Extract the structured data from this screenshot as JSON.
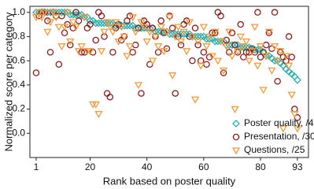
{
  "chart_data": {
    "type": "scatter",
    "xlabel": "Rank based on poster quality",
    "ylabel": "Normalized score per category",
    "x": [
      1,
      2,
      3,
      4,
      5,
      6,
      7,
      8,
      9,
      10,
      11,
      12,
      13,
      14,
      15,
      16,
      17,
      18,
      19,
      20,
      21,
      22,
      23,
      24,
      25,
      26,
      27,
      28,
      29,
      30,
      31,
      32,
      33,
      34,
      35,
      36,
      37,
      38,
      39,
      40,
      41,
      42,
      43,
      44,
      45,
      46,
      47,
      48,
      49,
      50,
      51,
      52,
      53,
      54,
      55,
      56,
      57,
      58,
      59,
      60,
      61,
      62,
      63,
      64,
      65,
      66,
      67,
      68,
      69,
      70,
      71,
      72,
      73,
      74,
      75,
      76,
      77,
      78,
      79,
      80,
      81,
      82,
      83,
      84,
      85,
      86,
      87,
      88,
      89,
      90,
      91,
      92,
      93
    ],
    "xlim": [
      -1.2,
      96.9
    ],
    "xticks": [
      1,
      20,
      40,
      60,
      80,
      93
    ],
    "ylim": [
      -0.2,
      1.05
    ],
    "yticks": [
      {
        "value": 0,
        "label": "0.0"
      },
      {
        "value": 0.2,
        "label": "0.2"
      },
      {
        "value": 0.4,
        "label": "0.4"
      },
      {
        "value": 0.6,
        "label": "0.6"
      },
      {
        "value": 0.8,
        "label": "0.8"
      },
      {
        "value": 1,
        "label": "1.0"
      }
    ],
    "legend": "lower right",
    "series": [
      {
        "name": "Poster quality, /45",
        "color": "#2bafb0",
        "marker": "diamond",
        "values": [
          1,
          1,
          1,
          1,
          1,
          1,
          1,
          1,
          1,
          1,
          1,
          1,
          0.98,
          0.98,
          0.98,
          0.98,
          0.98,
          0.96,
          0.96,
          0.93,
          0.93,
          0.91,
          0.91,
          0.91,
          0.91,
          0.91,
          0.91,
          0.91,
          0.89,
          0.89,
          0.89,
          0.89,
          0.89,
          0.89,
          0.89,
          0.87,
          0.87,
          0.87,
          0.87,
          0.87,
          0.87,
          0.87,
          0.84,
          0.84,
          0.84,
          0.84,
          0.84,
          0.82,
          0.82,
          0.82,
          0.82,
          0.82,
          0.82,
          0.82,
          0.82,
          0.8,
          0.8,
          0.8,
          0.8,
          0.8,
          0.78,
          0.78,
          0.78,
          0.76,
          0.76,
          0.76,
          0.76,
          0.73,
          0.73,
          0.73,
          0.73,
          0.73,
          0.71,
          0.71,
          0.71,
          0.71,
          0.69,
          0.69,
          0.69,
          0.69,
          0.67,
          0.64,
          0.64,
          0.62,
          0.6,
          0.6,
          0.58,
          0.56,
          0.53,
          0.51,
          0.49,
          0.47,
          0.44
        ]
      },
      {
        "name": "Presentation, /30",
        "color": "#8b1c1c",
        "marker": "circle",
        "values": [
          0.5,
          0.97,
          1,
          1,
          0.93,
          0.67,
          1,
          0.97,
          0.57,
          0.97,
          0.83,
          0.9,
          0.73,
          0.87,
          1,
          0.93,
          0.67,
          0.67,
          0.87,
          0.9,
          0.67,
          0.77,
          1,
          0.97,
          0.8,
          0.33,
          0.3,
          0.67,
          0.87,
          0.9,
          0.77,
          0.8,
          0.93,
          0.97,
          0.67,
          0.73,
          0.87,
          0.33,
          0.93,
          0.9,
          0.57,
          0.87,
          0.8,
          0.67,
          0.93,
          0.83,
          0.7,
          0.97,
          0.87,
          0.33,
          0.8,
          0.73,
          0.9,
          0.93,
          0.8,
          0.6,
          0.87,
          0.73,
          0.6,
          0.67,
          0.57,
          0.63,
          0.83,
          0.83,
          1,
          0.97,
          0.5,
          0.77,
          0.67,
          0.83,
          0.73,
          0.67,
          0.9,
          0.63,
          0.67,
          0.67,
          0.7,
          0.67,
          1,
          0.63,
          0.67,
          0.73,
          0.83,
          0.7,
          1,
          0.43,
          0.67,
          0.63,
          0.6,
          0.8,
          0.63,
          0.2,
          0.13
        ]
      },
      {
        "name": "Questions, /25",
        "color": "#f39a3c",
        "marker": "triangle-down",
        "values": [
          0.96,
          1,
          0.96,
          1,
          0.84,
          0.92,
          1,
          0.96,
          0.88,
          0.72,
          0.88,
          1,
          0.76,
          0.92,
          0.88,
          0.68,
          0.72,
          0.96,
          0.68,
          0.68,
          0.24,
          0.24,
          0.16,
          0.68,
          0.84,
          0.92,
          0.88,
          0.84,
          0.92,
          0.76,
          0.88,
          0.8,
          0.64,
          0.72,
          0.96,
          0.84,
          0.4,
          0.92,
          0.88,
          0.76,
          0.84,
          0.6,
          0.8,
          0.72,
          0.88,
          0.68,
          0.84,
          0.96,
          0.48,
          0.8,
          0.88,
          0.76,
          0.84,
          0.68,
          0.92,
          0.8,
          0.28,
          0.76,
          0.56,
          0.88,
          0.72,
          0.8,
          0.64,
          0.84,
          0.6,
          0.76,
          0.52,
          0.72,
          0.84,
          0.64,
          0.2,
          0.68,
          0.8,
          0.72,
          0.76,
          0.6,
          0.68,
          0.88,
          0.56,
          0.72,
          0.36,
          0.64,
          0.84,
          0.52,
          0.72,
          0.6,
          0.68,
          0.04,
          0.64,
          0.56,
          0.32,
          0.16,
          0.04
        ]
      }
    ]
  }
}
